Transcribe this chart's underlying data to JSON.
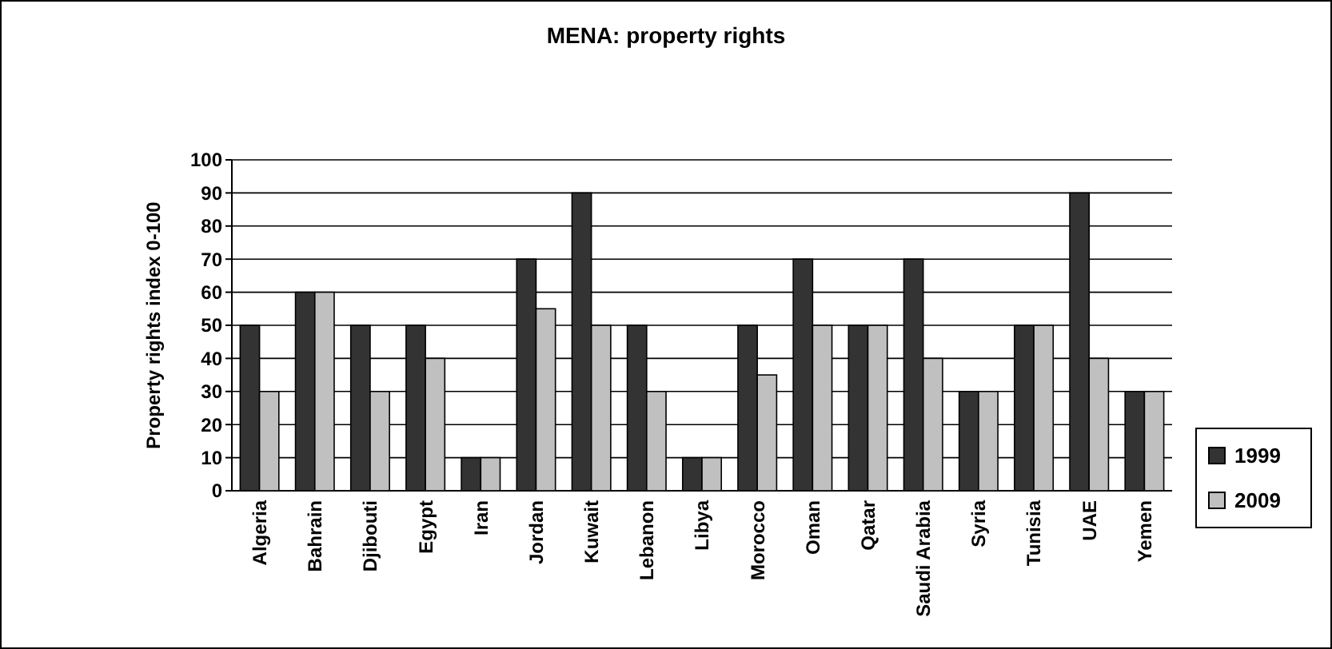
{
  "chart_data": {
    "type": "bar",
    "title": "MENA: property rights",
    "ylabel": "Property rights index 0-100",
    "categories": [
      "Algeria",
      "Bahrain",
      "Djibouti",
      "Egypt",
      "Iran",
      "Jordan",
      "Kuwait",
      "Lebanon",
      "Libya",
      "Morocco",
      "Oman",
      "Qatar",
      "Saudi Arabia",
      "Syria",
      "Tunisia",
      "UAE",
      "Yemen"
    ],
    "series": [
      {
        "name": "1999",
        "color": "#333333",
        "values": [
          50,
          60,
          50,
          50,
          10,
          70,
          90,
          50,
          10,
          50,
          70,
          50,
          70,
          30,
          50,
          90,
          30
        ]
      },
      {
        "name": "2009",
        "color": "#c0c0c0",
        "values": [
          30,
          60,
          30,
          40,
          10,
          55,
          50,
          30,
          10,
          35,
          50,
          50,
          40,
          30,
          50,
          40,
          30
        ]
      }
    ],
    "ylim": [
      0,
      100
    ],
    "yticks": [
      0,
      10,
      20,
      30,
      40,
      50,
      60,
      70,
      80,
      90,
      100
    ],
    "grid": "y",
    "legend": "right"
  }
}
